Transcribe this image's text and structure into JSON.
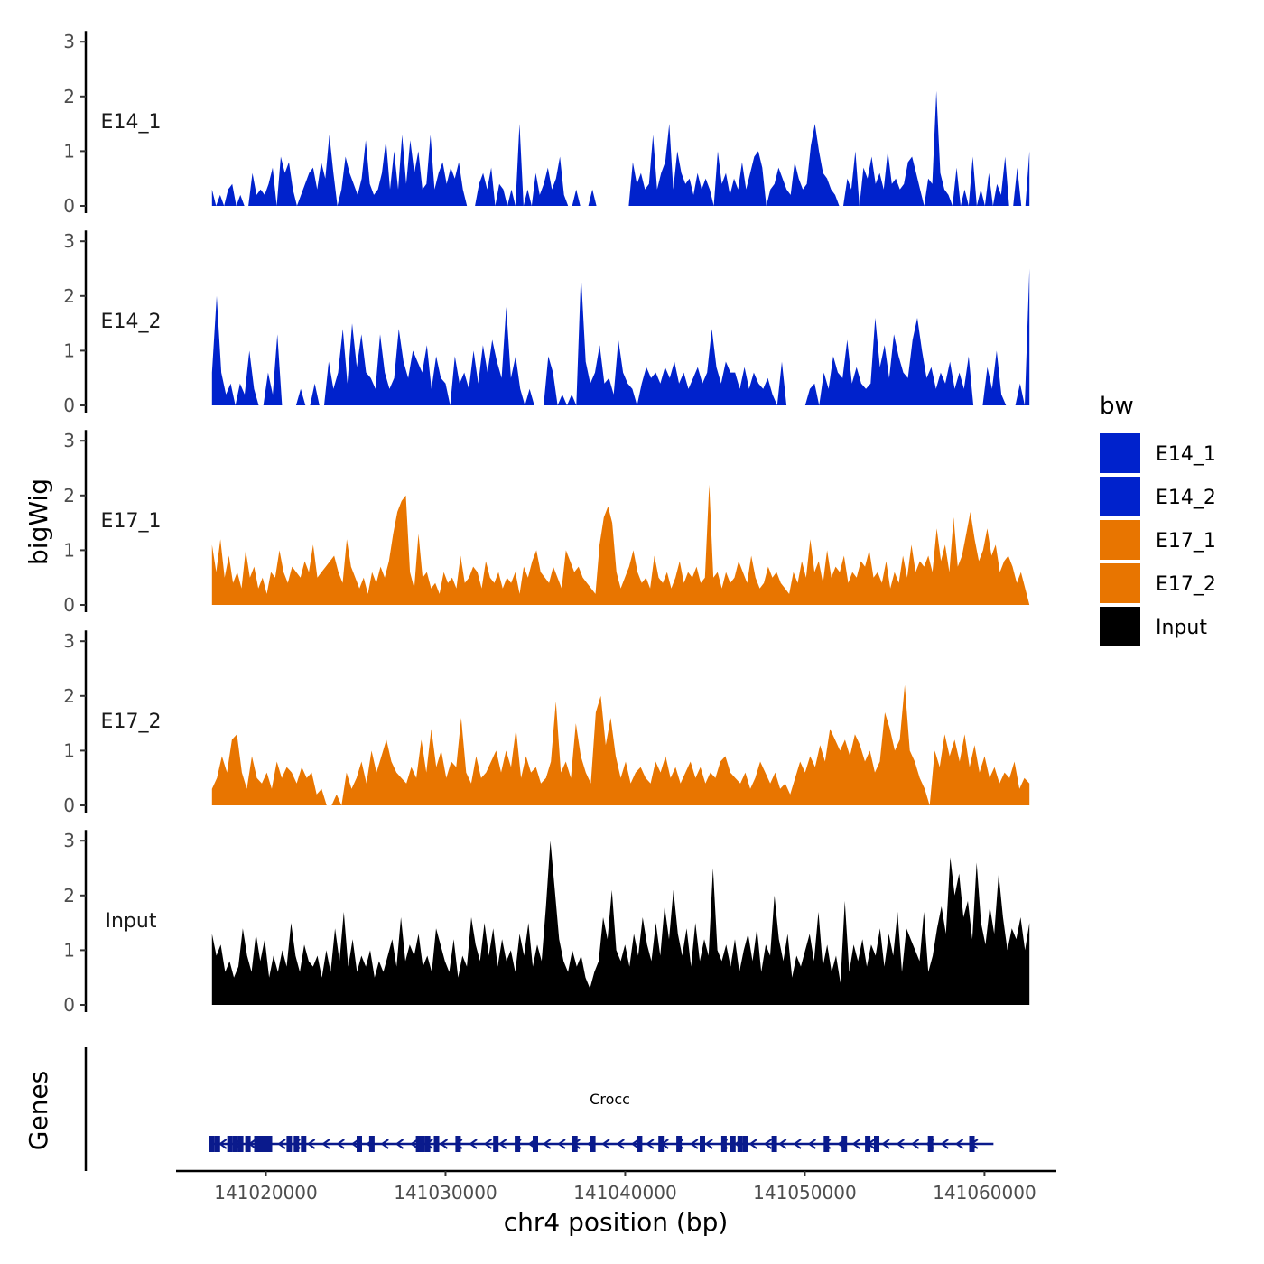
{
  "chart_data": {
    "type": "area",
    "ylabel": "bigWig",
    "xlabel": "chr4 position (bp)",
    "ylim": [
      0,
      3
    ],
    "yticks": [
      0,
      1,
      2,
      3
    ],
    "x_range": [
      141015000,
      141064000
    ],
    "xticks": [
      141020000,
      141030000,
      141040000,
      141050000,
      141060000
    ],
    "x_tick_labels": [
      "141020000",
      "141030000",
      "141040000",
      "141050000",
      "141060000"
    ],
    "signal_range": [
      141017000,
      141062500
    ],
    "legend": {
      "title": "bw",
      "position": "right",
      "entries": [
        {
          "name": "E14_1",
          "color": "#0022cc"
        },
        {
          "name": "E14_2",
          "color": "#0022cc"
        },
        {
          "name": "E17_1",
          "color": "#e87500"
        },
        {
          "name": "E17_2",
          "color": "#e87500"
        },
        {
          "name": "Input",
          "color": "#000000"
        }
      ]
    },
    "series": [
      {
        "name": "E14_1",
        "color": "#0022cc",
        "values": [
          0.3,
          0,
          0.2,
          0,
          0.3,
          0.4,
          0,
          0.2,
          0,
          0,
          0.6,
          0.2,
          0.3,
          0.2,
          0.4,
          0.7,
          0,
          0.9,
          0.6,
          0.8,
          0.3,
          0,
          0.2,
          0.4,
          0.6,
          0.7,
          0.3,
          0.8,
          0.5,
          1.3,
          0.6,
          0,
          0.3,
          0.9,
          0.6,
          0.4,
          0.2,
          0.5,
          1.2,
          0.4,
          0.2,
          0.3,
          0.6,
          1.2,
          0.3,
          1.0,
          0.3,
          1.3,
          0.4,
          1.2,
          0.6,
          1.0,
          0.3,
          0.4,
          1.3,
          0.3,
          0.6,
          0.8,
          0.4,
          0.7,
          0.5,
          0.8,
          0.3,
          0,
          0,
          0,
          0.4,
          0.6,
          0.3,
          0.7,
          0,
          0.4,
          0.3,
          0,
          0.3,
          0,
          1.5,
          0,
          0.3,
          0,
          0.6,
          0.2,
          0.4,
          0.7,
          0.3,
          0.5,
          0.9,
          0.2,
          0,
          0,
          0.3,
          0,
          0,
          0,
          0.3,
          0,
          0,
          0,
          0,
          0,
          0,
          0,
          0,
          0,
          0.8,
          0.4,
          0.6,
          0.3,
          0.4,
          1.3,
          0.3,
          0.6,
          0.8,
          1.5,
          0.3,
          1.0,
          0.6,
          0.4,
          0.5,
          0.2,
          0.6,
          0.3,
          0.5,
          0.3,
          0,
          1.0,
          0.4,
          0.6,
          0.2,
          0.5,
          0.3,
          0.8,
          0.3,
          0.6,
          0.9,
          1.0,
          0.7,
          0,
          0.3,
          0.4,
          0.7,
          0.5,
          0.3,
          0.2,
          0.8,
          0.5,
          0.3,
          0.4,
          1.1,
          1.5,
          1.0,
          0.6,
          0.5,
          0.3,
          0.2,
          0,
          0,
          0.5,
          0.3,
          1.0,
          0,
          0.7,
          0.5,
          0.9,
          0.4,
          0.6,
          0.3,
          1.0,
          0.4,
          0.5,
          0.3,
          0.4,
          0.8,
          0.9,
          0.6,
          0.3,
          0,
          0.5,
          0.4,
          2.1,
          0.6,
          0.3,
          0.2,
          0,
          0.7,
          0,
          0.3,
          0,
          0.9,
          0,
          0.3,
          0,
          0.6,
          0,
          0.4,
          0.2,
          0.9,
          0,
          0,
          0.7,
          0,
          0,
          1.0
        ]
      },
      {
        "name": "E14_2",
        "color": "#0022cc",
        "values": [
          0.6,
          2.0,
          0.6,
          0.2,
          0.4,
          0,
          0.4,
          0.2,
          1.0,
          0.3,
          0,
          0,
          0.6,
          0.2,
          1.3,
          0,
          0,
          0,
          0,
          0.3,
          0,
          0,
          0.4,
          0,
          0,
          0.8,
          0.3,
          0.6,
          1.4,
          0.4,
          1.5,
          0.7,
          1.3,
          0.6,
          0.5,
          0.3,
          1.3,
          0.6,
          0.3,
          0.5,
          1.4,
          0.8,
          0.5,
          1.0,
          0.8,
          0.6,
          1.1,
          0.3,
          0.9,
          0.5,
          0.4,
          0,
          0.9,
          0.4,
          0.6,
          0.3,
          1.0,
          0.4,
          1.1,
          0.6,
          1.2,
          0.8,
          0.5,
          1.8,
          0.5,
          0.9,
          0.3,
          0,
          0.3,
          0,
          0,
          0,
          0.9,
          0.6,
          0,
          0.2,
          0,
          0.2,
          0,
          2.4,
          0.8,
          0.4,
          0.6,
          1.1,
          0.4,
          0.5,
          0.2,
          1.2,
          0.6,
          0.4,
          0.3,
          0,
          0.4,
          0.7,
          0.5,
          0.6,
          0.4,
          0.7,
          0.5,
          0.8,
          0.4,
          0.6,
          0.3,
          0.5,
          0.7,
          0.4,
          0.6,
          1.4,
          0.7,
          0.4,
          0.8,
          0.6,
          0.6,
          0.3,
          0.7,
          0.3,
          0.6,
          0.4,
          0.3,
          0.5,
          0.2,
          0,
          0.8,
          0,
          0,
          0,
          0,
          0,
          0.3,
          0.4,
          0,
          0.6,
          0.3,
          0.9,
          0.6,
          0.5,
          1.2,
          0.4,
          0.7,
          0.4,
          0.3,
          0.4,
          1.6,
          0.7,
          1.1,
          0.5,
          1.3,
          0.9,
          0.6,
          0.5,
          1.2,
          1.6,
          1.0,
          0.5,
          0.7,
          0.3,
          0.6,
          0.4,
          0.8,
          0.3,
          0.6,
          0.3,
          0.9,
          0,
          0,
          0,
          0.7,
          0.3,
          1.0,
          0.2,
          0,
          0,
          0,
          0.4,
          0,
          2.5
        ]
      },
      {
        "name": "E17_1",
        "color": "#e87500",
        "values": [
          1.1,
          0.6,
          1.2,
          0.5,
          0.9,
          0.4,
          0.6,
          0.3,
          1.0,
          0.5,
          0.7,
          0.3,
          0.5,
          0.2,
          0.6,
          0.5,
          1.0,
          0.6,
          0.4,
          0.7,
          0.6,
          0.5,
          0.8,
          0.6,
          1.1,
          0.5,
          0.6,
          0.7,
          0.8,
          0.9,
          0.6,
          0.4,
          1.2,
          0.7,
          0.5,
          0.3,
          0.5,
          0.2,
          0.6,
          0.4,
          0.7,
          0.5,
          0.8,
          1.3,
          1.7,
          1.9,
          2.0,
          0.6,
          0.3,
          1.3,
          0.5,
          0.6,
          0.3,
          0.4,
          0.2,
          0.6,
          0.4,
          0.5,
          0.3,
          0.9,
          0.4,
          0.5,
          0.7,
          0.6,
          0.3,
          0.8,
          0.5,
          0.4,
          0.6,
          0.3,
          0.5,
          0.4,
          0.6,
          0.2,
          0.7,
          0.5,
          0.8,
          1.0,
          0.6,
          0.5,
          0.4,
          0.7,
          0.5,
          0.3,
          1.0,
          0.8,
          0.6,
          0.7,
          0.5,
          0.4,
          0.3,
          0.2,
          1.1,
          1.6,
          1.8,
          1.5,
          0.6,
          0.3,
          0.5,
          0.7,
          1.0,
          0.6,
          0.4,
          0.5,
          0.3,
          0.9,
          0.5,
          0.4,
          0.6,
          0.3,
          0.5,
          0.8,
          0.4,
          0.6,
          0.5,
          0.7,
          0.4,
          0.5,
          2.2,
          0.5,
          0.6,
          0.3,
          0.6,
          0.4,
          0.5,
          0.8,
          0.6,
          0.4,
          0.9,
          0.5,
          0.3,
          0.4,
          0.7,
          0.5,
          0.6,
          0.4,
          0.3,
          0.2,
          0.6,
          0.4,
          0.8,
          0.5,
          1.2,
          0.6,
          0.8,
          0.4,
          1.0,
          0.5,
          0.7,
          0.6,
          0.9,
          0.4,
          0.6,
          0.5,
          0.8,
          0.7,
          1.0,
          0.5,
          0.6,
          0.4,
          0.8,
          0.3,
          0.6,
          0.4,
          0.9,
          0.5,
          1.1,
          0.6,
          0.8,
          0.7,
          0.9,
          0.6,
          1.4,
          0.8,
          1.1,
          0.6,
          1.6,
          0.7,
          0.9,
          1.3,
          1.7,
          1.2,
          0.8,
          1.0,
          1.4,
          0.9,
          1.1,
          0.6,
          0.8,
          0.9,
          0.7,
          0.4,
          0.6,
          0.3,
          0
        ]
      },
      {
        "name": "E17_2",
        "color": "#e87500",
        "values": [
          0.3,
          0.5,
          0.9,
          0.6,
          1.2,
          1.3,
          0.6,
          0.3,
          0.9,
          0.5,
          0.4,
          0.6,
          0.3,
          0.8,
          0.5,
          0.7,
          0.6,
          0.4,
          0.7,
          0.5,
          0.6,
          0.2,
          0.3,
          0,
          0,
          0.2,
          0,
          0.6,
          0.3,
          0.5,
          0.8,
          0.4,
          1.0,
          0.6,
          0.9,
          1.2,
          0.8,
          0.6,
          0.5,
          0.4,
          0.7,
          0.5,
          1.2,
          0.6,
          1.4,
          0.7,
          1.0,
          0.5,
          0.8,
          0.7,
          1.6,
          0.6,
          0.4,
          0.9,
          0.5,
          0.6,
          0.8,
          1.0,
          0.6,
          1.0,
          0.7,
          1.4,
          0.5,
          0.9,
          0.6,
          0.7,
          0.4,
          0.5,
          0.8,
          1.9,
          0.6,
          0.8,
          0.5,
          1.5,
          0.9,
          0.6,
          0.4,
          1.7,
          2.0,
          1.1,
          1.6,
          0.9,
          0.5,
          0.8,
          0.4,
          0.6,
          0.7,
          0.5,
          0.4,
          0.8,
          0.6,
          0.9,
          0.5,
          0.7,
          0.4,
          0.6,
          0.8,
          0.5,
          0.7,
          0.4,
          0.6,
          0.5,
          0.8,
          0.9,
          0.6,
          0.5,
          0.4,
          0.6,
          0.3,
          0.5,
          0.8,
          0.6,
          0.4,
          0.6,
          0.3,
          0.4,
          0.2,
          0.5,
          0.8,
          0.6,
          0.9,
          0.7,
          1.1,
          0.8,
          1.4,
          1.2,
          1.0,
          1.2,
          0.9,
          1.3,
          1.1,
          0.8,
          1.0,
          0.6,
          0.8,
          1.7,
          1.4,
          1.0,
          1.2,
          2.2,
          1.0,
          0.8,
          0.5,
          0.3,
          0,
          1.0,
          0.7,
          1.3,
          0.9,
          1.2,
          0.8,
          1.3,
          0.7,
          1.1,
          0.6,
          0.9,
          0.5,
          0.7,
          0.4,
          0.6,
          0.5,
          0.8,
          0.3,
          0.5,
          0.4
        ]
      },
      {
        "name": "Input",
        "color": "#000000",
        "values": [
          1.3,
          0.9,
          1.1,
          0.6,
          0.8,
          0.5,
          0.7,
          1.4,
          0.9,
          0.6,
          1.3,
          0.8,
          1.2,
          0.5,
          0.9,
          0.6,
          1.0,
          0.7,
          1.5,
          0.9,
          0.6,
          1.1,
          0.8,
          0.7,
          0.9,
          0.5,
          1.0,
          0.6,
          1.4,
          0.8,
          1.7,
          0.7,
          1.2,
          0.6,
          0.9,
          0.7,
          1.0,
          0.5,
          0.8,
          0.6,
          0.9,
          1.2,
          0.7,
          1.6,
          0.8,
          1.1,
          0.9,
          1.3,
          0.7,
          0.9,
          0.6,
          1.4,
          1.1,
          0.8,
          0.6,
          1.2,
          0.5,
          0.9,
          0.7,
          1.6,
          1.1,
          0.8,
          1.5,
          0.9,
          1.4,
          0.7,
          1.2,
          0.8,
          1.0,
          0.6,
          1.3,
          0.9,
          1.5,
          0.7,
          1.1,
          0.8,
          1.8,
          3.0,
          2.1,
          1.2,
          0.8,
          0.6,
          1.0,
          0.7,
          0.9,
          0.5,
          0.3,
          0.6,
          0.8,
          1.6,
          1.2,
          2.1,
          1.0,
          0.8,
          1.1,
          0.7,
          1.3,
          0.9,
          1.6,
          1.1,
          0.8,
          1.5,
          0.9,
          1.8,
          1.2,
          2.1,
          1.3,
          0.9,
          1.4,
          0.7,
          1.5,
          0.8,
          1.2,
          0.9,
          2.5,
          1.0,
          0.8,
          1.1,
          0.7,
          1.2,
          0.6,
          1.0,
          1.3,
          0.8,
          1.4,
          0.6,
          1.1,
          0.9,
          2.0,
          1.2,
          0.8,
          1.3,
          0.5,
          0.9,
          0.7,
          1.0,
          1.3,
          0.8,
          1.7,
          0.7,
          1.1,
          0.6,
          0.9,
          0.4,
          1.9,
          0.6,
          1.1,
          0.8,
          1.2,
          0.7,
          1.1,
          0.9,
          1.4,
          0.7,
          1.3,
          0.9,
          1.7,
          0.6,
          1.4,
          1.2,
          1.0,
          0.8,
          1.7,
          0.6,
          0.9,
          1.4,
          1.8,
          1.3,
          2.7,
          2.0,
          2.4,
          1.6,
          1.9,
          1.2,
          2.6,
          1.5,
          1.1,
          1.8,
          1.3,
          2.4,
          1.6,
          1.0,
          1.4,
          1.2,
          1.6,
          1.0,
          1.5
        ]
      }
    ],
    "genes": {
      "title": "Genes",
      "name": "Crocc",
      "strand": "-",
      "color": "#0a1a8c",
      "start": 141017000,
      "end": 141060500,
      "exons": [
        141017000,
        141017300,
        141018000,
        141018300,
        141018600,
        141019000,
        141019500,
        141019800,
        141020100,
        141020200,
        141021300,
        141021700,
        141022100,
        141025200,
        141025900,
        141028500,
        141028700,
        141029000,
        141029500,
        141030700,
        141032800,
        141034000,
        141035000,
        141037200,
        141038200,
        141040800,
        141042000,
        141043000,
        141044300,
        141045500,
        141046000,
        141046400,
        141046700,
        141048300,
        141051200,
        141052200,
        141053500,
        141054000,
        141057000,
        141059300
      ]
    }
  }
}
